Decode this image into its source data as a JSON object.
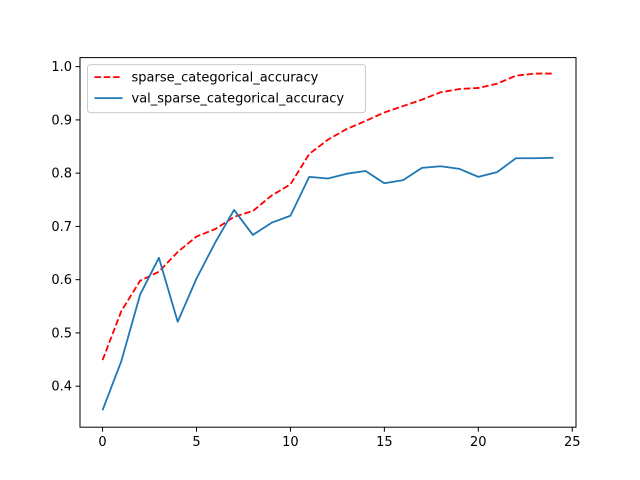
{
  "chart_data": {
    "type": "line",
    "title": "",
    "xlabel": "",
    "ylabel": "",
    "xlim": [
      -1.2,
      25.2
    ],
    "ylim": [
      0.323,
      1.017
    ],
    "xticks": [
      0,
      5,
      10,
      15,
      20,
      25
    ],
    "yticks": [
      0.4,
      0.5,
      0.6,
      0.7,
      0.8,
      0.9,
      1.0
    ],
    "x": [
      0,
      1,
      2,
      3,
      4,
      5,
      6,
      7,
      8,
      9,
      10,
      11,
      12,
      13,
      14,
      15,
      16,
      17,
      18,
      19,
      20,
      21,
      22,
      23,
      24
    ],
    "grid": false,
    "legend_position": "upper-left",
    "series": [
      {
        "name": "sparse_categorical_accuracy",
        "color": "#ff0000",
        "style": "dashed",
        "values": [
          0.449,
          0.541,
          0.598,
          0.615,
          0.652,
          0.681,
          0.695,
          0.718,
          0.729,
          0.758,
          0.779,
          0.836,
          0.863,
          0.883,
          0.898,
          0.914,
          0.926,
          0.938,
          0.952,
          0.958,
          0.96,
          0.968,
          0.983,
          0.987,
          0.987
        ]
      },
      {
        "name": "val_sparse_categorical_accuracy",
        "color": "#1f77b4",
        "style": "solid",
        "values": [
          0.355,
          0.447,
          0.572,
          0.641,
          0.521,
          0.602,
          0.67,
          0.731,
          0.684,
          0.707,
          0.72,
          0.793,
          0.79,
          0.799,
          0.804,
          0.781,
          0.787,
          0.81,
          0.813,
          0.808,
          0.793,
          0.802,
          0.828,
          0.828,
          0.829
        ]
      }
    ]
  }
}
